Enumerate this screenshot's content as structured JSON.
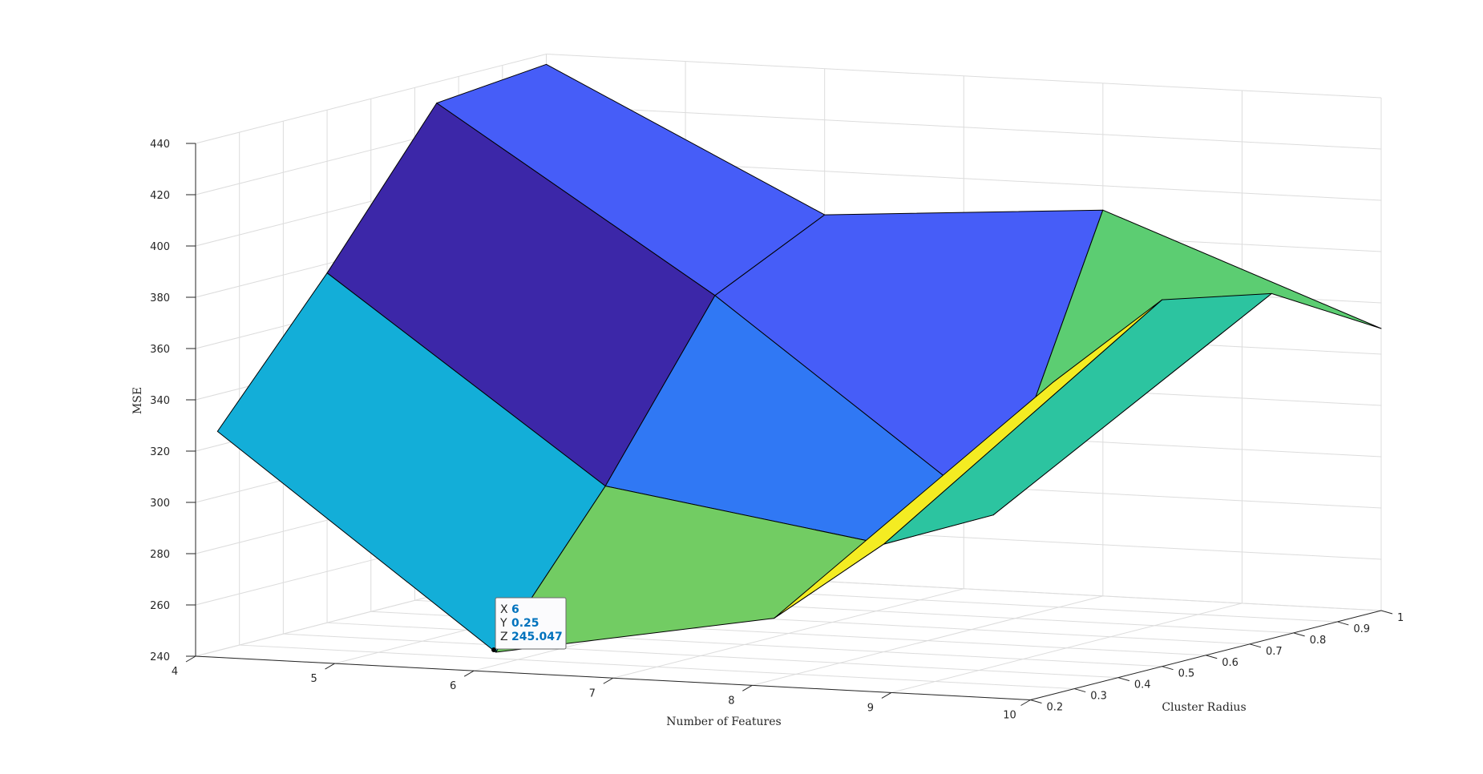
{
  "chart_data": {
    "type": "surface",
    "title": "",
    "xlabel": "Number of Features",
    "ylabel": "Cluster Radius",
    "zlabel": "MSE",
    "x": [
      4,
      6,
      8,
      10
    ],
    "y": [
      0.25,
      0.5,
      0.75,
      1
    ],
    "z": [
      [
        325.5,
        245.047,
        264.0,
        361.5
      ],
      [
        376.4,
        299.0,
        282.0,
        383.0
      ],
      [
        431.8,
        362.4,
        282.5,
        374.5
      ],
      [
        436.0,
        383.0,
        390.5,
        350.0
      ]
    ],
    "xlim": [
      4,
      10
    ],
    "ylim": [
      0.2,
      1
    ],
    "zlim": [
      240,
      440
    ],
    "x_ticks": [
      "4",
      "5",
      "6",
      "7",
      "8",
      "9",
      "10"
    ],
    "y_ticks": [
      "0.2",
      "0.3",
      "0.4",
      "0.5",
      "0.6",
      "0.7",
      "0.8",
      "0.9",
      "1"
    ],
    "z_ticks": [
      "240",
      "260",
      "280",
      "300",
      "320",
      "340",
      "360",
      "380",
      "400",
      "420",
      "440"
    ],
    "grid": true,
    "colormap": "parula",
    "face_colors": {
      "c0_0": "#13aed8",
      "c1_0": "#72cc63",
      "c2_0": "#f4ec22",
      "c0_1": "#3c27a8",
      "c1_1": "#3078f4",
      "c2_1": "#2cc4a0",
      "c0_2": "#465df8",
      "c1_2": "#465df8",
      "c2_2": "#5ccd72"
    },
    "datatip": {
      "x_key": "X",
      "x_val": "6",
      "y_key": "Y",
      "y_val": "0.25",
      "z_key": "Z",
      "z_val": "245.047"
    }
  }
}
